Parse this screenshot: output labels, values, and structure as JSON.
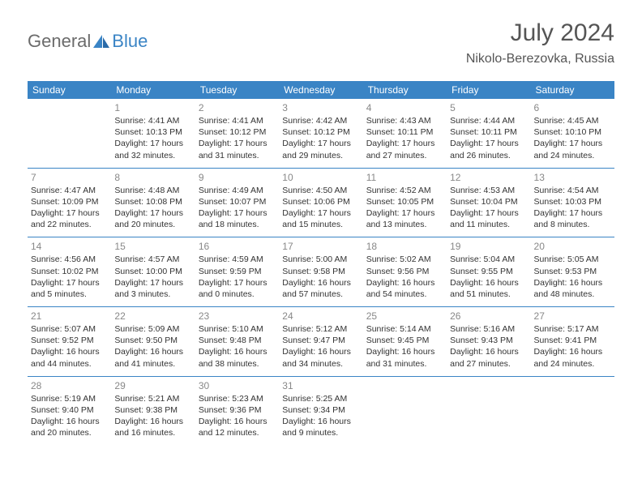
{
  "logo": {
    "part1": "General",
    "part2": "Blue"
  },
  "title": "July 2024",
  "location": "Nikolo-Berezovka, Russia",
  "colors": {
    "accent": "#3a84c5",
    "header_text": "#ffffff",
    "body_text": "#333333",
    "muted": "#888888",
    "title_text": "#555555",
    "background": "#ffffff"
  },
  "day_headers": [
    "Sunday",
    "Monday",
    "Tuesday",
    "Wednesday",
    "Thursday",
    "Friday",
    "Saturday"
  ],
  "weeks": [
    [
      null,
      {
        "num": "1",
        "sunrise": "4:41 AM",
        "sunset": "10:13 PM",
        "dl": "17 hours and 32 minutes."
      },
      {
        "num": "2",
        "sunrise": "4:41 AM",
        "sunset": "10:12 PM",
        "dl": "17 hours and 31 minutes."
      },
      {
        "num": "3",
        "sunrise": "4:42 AM",
        "sunset": "10:12 PM",
        "dl": "17 hours and 29 minutes."
      },
      {
        "num": "4",
        "sunrise": "4:43 AM",
        "sunset": "10:11 PM",
        "dl": "17 hours and 27 minutes."
      },
      {
        "num": "5",
        "sunrise": "4:44 AM",
        "sunset": "10:11 PM",
        "dl": "17 hours and 26 minutes."
      },
      {
        "num": "6",
        "sunrise": "4:45 AM",
        "sunset": "10:10 PM",
        "dl": "17 hours and 24 minutes."
      }
    ],
    [
      {
        "num": "7",
        "sunrise": "4:47 AM",
        "sunset": "10:09 PM",
        "dl": "17 hours and 22 minutes."
      },
      {
        "num": "8",
        "sunrise": "4:48 AM",
        "sunset": "10:08 PM",
        "dl": "17 hours and 20 minutes."
      },
      {
        "num": "9",
        "sunrise": "4:49 AM",
        "sunset": "10:07 PM",
        "dl": "17 hours and 18 minutes."
      },
      {
        "num": "10",
        "sunrise": "4:50 AM",
        "sunset": "10:06 PM",
        "dl": "17 hours and 15 minutes."
      },
      {
        "num": "11",
        "sunrise": "4:52 AM",
        "sunset": "10:05 PM",
        "dl": "17 hours and 13 minutes."
      },
      {
        "num": "12",
        "sunrise": "4:53 AM",
        "sunset": "10:04 PM",
        "dl": "17 hours and 11 minutes."
      },
      {
        "num": "13",
        "sunrise": "4:54 AM",
        "sunset": "10:03 PM",
        "dl": "17 hours and 8 minutes."
      }
    ],
    [
      {
        "num": "14",
        "sunrise": "4:56 AM",
        "sunset": "10:02 PM",
        "dl": "17 hours and 5 minutes."
      },
      {
        "num": "15",
        "sunrise": "4:57 AM",
        "sunset": "10:00 PM",
        "dl": "17 hours and 3 minutes."
      },
      {
        "num": "16",
        "sunrise": "4:59 AM",
        "sunset": "9:59 PM",
        "dl": "17 hours and 0 minutes."
      },
      {
        "num": "17",
        "sunrise": "5:00 AM",
        "sunset": "9:58 PM",
        "dl": "16 hours and 57 minutes."
      },
      {
        "num": "18",
        "sunrise": "5:02 AM",
        "sunset": "9:56 PM",
        "dl": "16 hours and 54 minutes."
      },
      {
        "num": "19",
        "sunrise": "5:04 AM",
        "sunset": "9:55 PM",
        "dl": "16 hours and 51 minutes."
      },
      {
        "num": "20",
        "sunrise": "5:05 AM",
        "sunset": "9:53 PM",
        "dl": "16 hours and 48 minutes."
      }
    ],
    [
      {
        "num": "21",
        "sunrise": "5:07 AM",
        "sunset": "9:52 PM",
        "dl": "16 hours and 44 minutes."
      },
      {
        "num": "22",
        "sunrise": "5:09 AM",
        "sunset": "9:50 PM",
        "dl": "16 hours and 41 minutes."
      },
      {
        "num": "23",
        "sunrise": "5:10 AM",
        "sunset": "9:48 PM",
        "dl": "16 hours and 38 minutes."
      },
      {
        "num": "24",
        "sunrise": "5:12 AM",
        "sunset": "9:47 PM",
        "dl": "16 hours and 34 minutes."
      },
      {
        "num": "25",
        "sunrise": "5:14 AM",
        "sunset": "9:45 PM",
        "dl": "16 hours and 31 minutes."
      },
      {
        "num": "26",
        "sunrise": "5:16 AM",
        "sunset": "9:43 PM",
        "dl": "16 hours and 27 minutes."
      },
      {
        "num": "27",
        "sunrise": "5:17 AM",
        "sunset": "9:41 PM",
        "dl": "16 hours and 24 minutes."
      }
    ],
    [
      {
        "num": "28",
        "sunrise": "5:19 AM",
        "sunset": "9:40 PM",
        "dl": "16 hours and 20 minutes."
      },
      {
        "num": "29",
        "sunrise": "5:21 AM",
        "sunset": "9:38 PM",
        "dl": "16 hours and 16 minutes."
      },
      {
        "num": "30",
        "sunrise": "5:23 AM",
        "sunset": "9:36 PM",
        "dl": "16 hours and 12 minutes."
      },
      {
        "num": "31",
        "sunrise": "5:25 AM",
        "sunset": "9:34 PM",
        "dl": "16 hours and 9 minutes."
      },
      null,
      null,
      null
    ]
  ],
  "labels": {
    "sunrise": "Sunrise:",
    "sunset": "Sunset:",
    "daylight": "Daylight:"
  }
}
